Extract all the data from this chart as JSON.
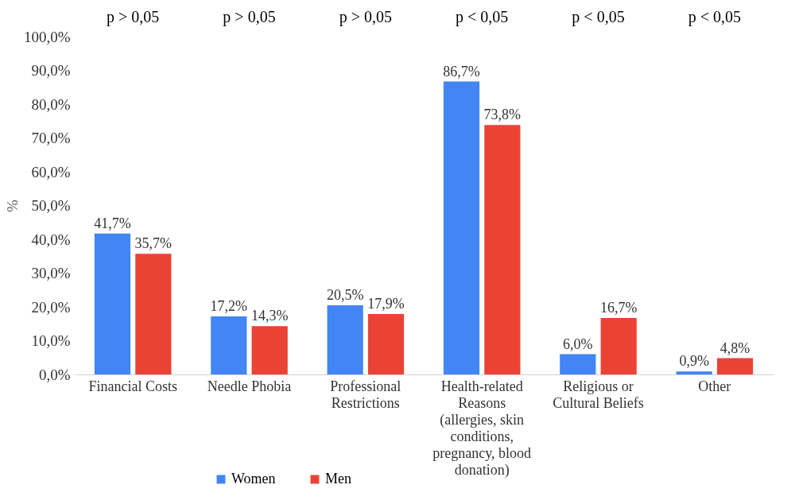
{
  "chart_data": {
    "type": "bar",
    "ylabel": "%",
    "categories": [
      "Financial Costs",
      "Needle Phobia",
      "Professional Restrictions",
      "Health-related Reasons (allergies, skin conditions, pregnancy, blood donation)",
      "Religious or Cultural Beliefs",
      "Other"
    ],
    "series": [
      {
        "name": "Women",
        "color": "#4285f4",
        "values": [
          41.7,
          17.2,
          20.5,
          86.7,
          6.0,
          0.9
        ],
        "value_labels": [
          "41,7%",
          "17,2%",
          "20,5%",
          "86,7%",
          "6,0%",
          "0,9%"
        ]
      },
      {
        "name": "Men",
        "color": "#ea4335",
        "values": [
          35.7,
          14.3,
          17.9,
          73.8,
          16.7,
          4.8
        ],
        "value_labels": [
          "35,7%",
          "14,3%",
          "17,9%",
          "73,8%",
          "16,7%",
          "4,8%"
        ]
      }
    ],
    "ylim": [
      0,
      100
    ],
    "yticks": [
      {
        "value": 0,
        "label": "0,0%"
      },
      {
        "value": 10,
        "label": "10,0%"
      },
      {
        "value": 20,
        "label": "20,0%"
      },
      {
        "value": 30,
        "label": "30,0%"
      },
      {
        "value": 40,
        "label": "40,0%"
      },
      {
        "value": 50,
        "label": "50,0%"
      },
      {
        "value": 60,
        "label": "60,0%"
      },
      {
        "value": 70,
        "label": "70,0%"
      },
      {
        "value": 80,
        "label": "80,0%"
      },
      {
        "value": 90,
        "label": "90,0%"
      },
      {
        "value": 100,
        "label": "100,0%"
      }
    ],
    "annotations": [
      "p > 0,05",
      "p > 0,05",
      "p > 0,05",
      "p < 0,05",
      "p < 0,05",
      "p < 0,05"
    ],
    "grid": false,
    "legend": "bottom"
  }
}
